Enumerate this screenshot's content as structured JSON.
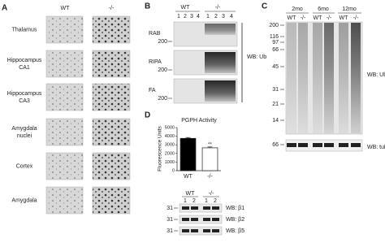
{
  "panels": {
    "a": {
      "label": "A",
      "columns": [
        "WT",
        "-/-"
      ],
      "regions": [
        [
          "Thalamus"
        ],
        [
          "Hippocampus",
          "CA1"
        ],
        [
          "Hippocampus",
          "CA3"
        ],
        [
          "Amygdala",
          "nuclei"
        ],
        [
          "Cortex"
        ],
        [
          "Amygdala"
        ]
      ]
    },
    "b": {
      "label": "B",
      "groups": [
        "WT",
        "-/-"
      ],
      "lanes": [
        "1",
        "2",
        "3",
        "4",
        "1",
        "2",
        "3",
        "4"
      ],
      "fractions": [
        "RAB",
        "RIPA",
        "FA"
      ],
      "marker": "200",
      "antibody": "WB: Ub"
    },
    "c": {
      "label": "C",
      "ages": [
        "2mo",
        "6mo",
        "12mo"
      ],
      "genotypes": [
        "WT",
        "-/-",
        "WT",
        "-/-",
        "WT",
        "-/-"
      ],
      "markers": [
        "200",
        "116",
        "97",
        "66",
        "45",
        "31",
        "21",
        "14"
      ],
      "antibody": "WB: Ub",
      "loading_marker": "66",
      "loading_antibody": "WB: tubulin"
    },
    "d": {
      "label": "D",
      "groups": [
        "WT",
        "-/-"
      ],
      "lanes": [
        "1",
        "2",
        "1",
        "2"
      ],
      "markers": [
        "31",
        "31",
        "31"
      ],
      "antibodies": [
        "WB: β1",
        "WB: β2",
        "WB: β5"
      ]
    }
  },
  "chart_data": {
    "type": "bar",
    "title": "PGPH Activity",
    "y_label": "Fluorescence Units",
    "categories": [
      "WT",
      "-/-"
    ],
    "values": [
      3750,
      2650
    ],
    "errors": [
      100,
      100
    ],
    "colors": [
      "#000000",
      "#ffffff"
    ],
    "annotation": "**",
    "ylim": [
      0,
      5000
    ],
    "yticks": [
      0,
      1000,
      2000,
      3000,
      4000,
      5000
    ]
  }
}
